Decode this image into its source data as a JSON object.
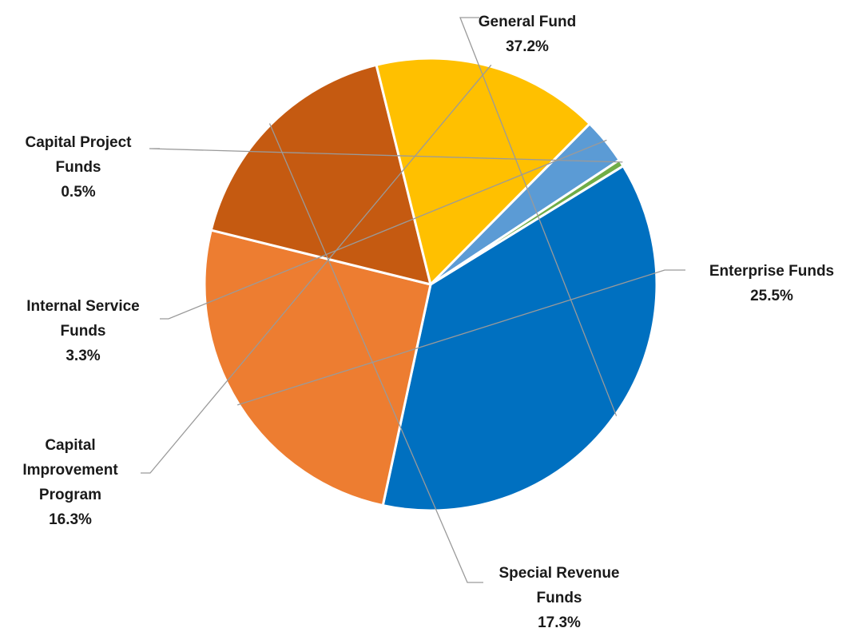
{
  "chart_data": {
    "type": "pie",
    "title": "",
    "slices": [
      {
        "label_lines": [
          "General Fund"
        ],
        "value": 37.2,
        "value_label": "37.2%",
        "color": "#0070C0"
      },
      {
        "label_lines": [
          "Enterprise Funds"
        ],
        "value": 25.5,
        "value_label": "25.5%",
        "color": "#ED7D31"
      },
      {
        "label_lines": [
          "Special Revenue",
          "Funds"
        ],
        "value": 17.3,
        "value_label": "17.3%",
        "color": "#C55A11"
      },
      {
        "label_lines": [
          "Capital",
          "Improvement",
          "Program"
        ],
        "value": 16.3,
        "value_label": "16.3%",
        "color": "#FFC000"
      },
      {
        "label_lines": [
          "Internal Service",
          "Funds"
        ],
        "value": 3.3,
        "value_label": "3.3%",
        "color": "#5B9BD5"
      },
      {
        "label_lines": [
          "Capital Project",
          "Funds"
        ],
        "value": 0.5,
        "value_label": "0.5%",
        "color": "#70AD47"
      }
    ],
    "legend": "none",
    "label_style": "outside with leader lines"
  }
}
